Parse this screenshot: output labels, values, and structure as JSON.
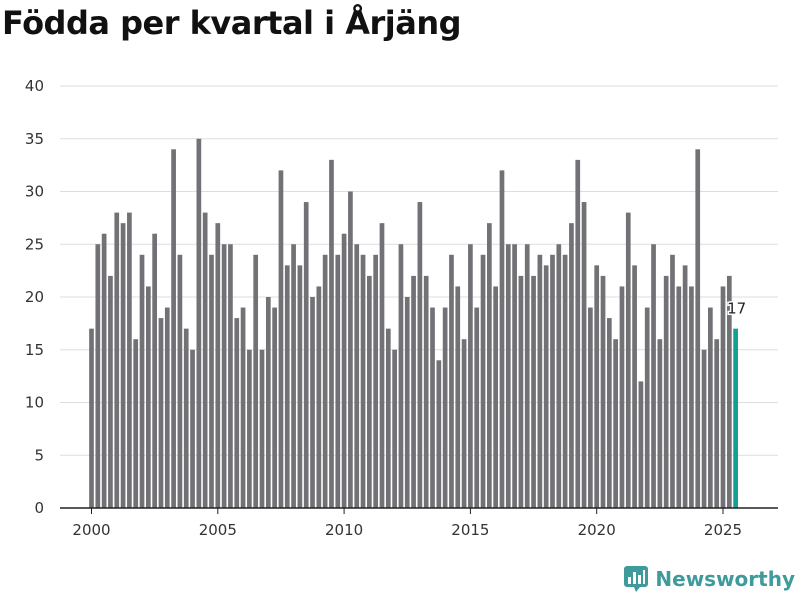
{
  "chart_data": {
    "type": "bar",
    "title": "Födda per kvartal i Årjäng",
    "xlabel": "",
    "ylabel": "",
    "ylim": [
      0,
      40
    ],
    "y_ticks": [
      0,
      5,
      10,
      15,
      20,
      25,
      30,
      35,
      40
    ],
    "x_ticks": [
      "2000",
      "2005",
      "2010",
      "2015",
      "2020",
      "2025"
    ],
    "grid": true,
    "start_year": 2000,
    "periods_per_year": 4,
    "values": [
      17,
      25,
      26,
      22,
      28,
      27,
      28,
      16,
      24,
      21,
      26,
      18,
      19,
      34,
      24,
      17,
      15,
      35,
      28,
      24,
      27,
      25,
      25,
      18,
      19,
      15,
      24,
      15,
      20,
      19,
      32,
      23,
      25,
      23,
      29,
      20,
      21,
      24,
      33,
      24,
      26,
      30,
      25,
      24,
      22,
      24,
      27,
      17,
      15,
      25,
      20,
      22,
      29,
      22,
      19,
      14,
      19,
      24,
      21,
      16,
      25,
      19,
      24,
      27,
      21,
      32,
      25,
      25,
      22,
      25,
      22,
      24,
      23,
      24,
      25,
      24,
      27,
      33,
      29,
      19,
      23,
      22,
      18,
      16,
      21,
      28,
      23,
      12,
      19,
      25,
      16,
      22,
      24,
      21,
      23,
      21,
      34,
      15,
      19,
      16,
      21,
      22,
      17
    ],
    "highlight_index": 102,
    "bar_color": "#727176",
    "highlight_color": "#139e96",
    "last_value_label": "17"
  },
  "brand": {
    "name": "Newsworthy",
    "color": "#3f9a9c"
  }
}
